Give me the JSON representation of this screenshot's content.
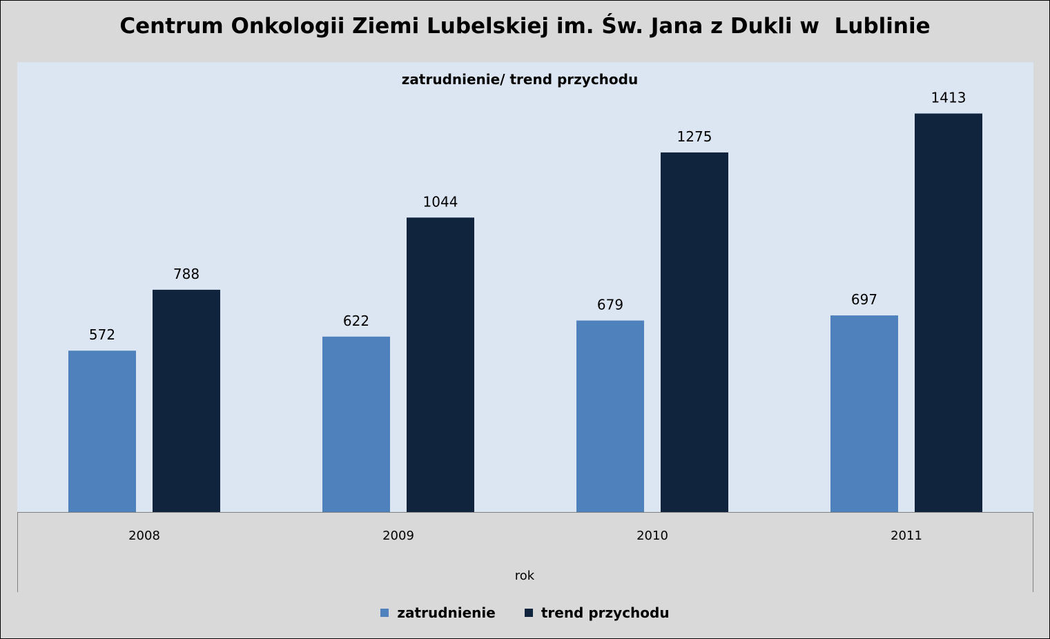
{
  "chart_data": {
    "type": "bar",
    "title": "Centrum Onkologii Ziemi Lubelskiej im. Św. Jana z Dukli w  Lublinie",
    "subtitle": "zatrudnienie/ trend przychodu",
    "xlabel": "rok",
    "ylabel": "",
    "categories": [
      "2008",
      "2009",
      "2010",
      "2011"
    ],
    "series": [
      {
        "name": "zatrudnienie",
        "values": [
          572,
          622,
          679,
          697
        ],
        "color": "#4f81bd"
      },
      {
        "name": "trend przychodu",
        "values": [
          788,
          1044,
          1275,
          1413
        ],
        "color": "#10243e"
      }
    ],
    "ylim": [
      0,
      1600
    ],
    "grid": false,
    "legend": "bottom",
    "colors": {
      "outer_background": "#d9d9d9",
      "plot_background": "#dce6f2"
    }
  }
}
